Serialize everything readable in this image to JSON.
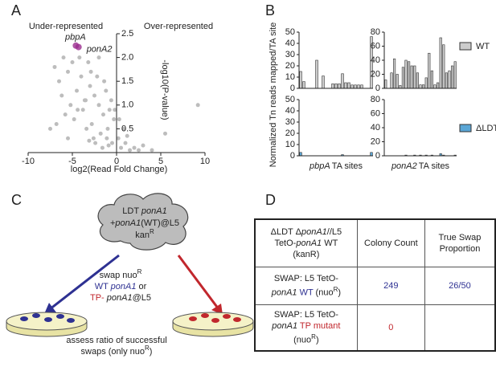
{
  "panels": [
    "A",
    "B",
    "C",
    "D"
  ],
  "chart_data": [
    {
      "type": "scatter",
      "left_label": "Under-represented",
      "right_label": "Over-represented",
      "xlabel": "log2(Read Fold Change)",
      "ylabel": "-log10(P-value)",
      "xlim": [
        -10,
        10
      ],
      "ylim": [
        0,
        2.5
      ],
      "xticks": [
        -10,
        -5,
        0,
        5,
        10
      ],
      "yticks": [
        0.5,
        {
          "value": 1,
          "label": "1.0"
        },
        1.5,
        {
          "value": 2,
          "label": "2.0"
        },
        2.5
      ],
      "color": "#bdbdbd",
      "x": [
        -0.5,
        -1,
        -1.5,
        -2,
        -2.5,
        -3,
        -3.5,
        -4,
        -4.5,
        -5,
        -5.5,
        -6,
        -6.5,
        -7,
        -1.2,
        -2.2,
        -3.2,
        -4.2,
        -5.2,
        -0.8,
        -1.8,
        -2.8,
        -3.8,
        -0.3,
        -0.6,
        -1.4,
        -2.6,
        -3.4,
        -4.8,
        -5.8,
        -6.2,
        0.2,
        0.5,
        1,
        1.5,
        2,
        2.5,
        3,
        4,
        0.8,
        1.2,
        0.3,
        -0.2,
        -0.9,
        -1.6,
        -2.4,
        -3.1,
        -5.5,
        -6.8,
        -4.4,
        9.2,
        5.5,
        -7.5,
        -1.1,
        -2.0,
        -3.6,
        -2.9
      ],
      "y": [
        0.2,
        0.5,
        0.8,
        1.0,
        1.2,
        1.4,
        1.1,
        1.6,
        1.3,
        1.9,
        1.7,
        2.0,
        1.5,
        1.8,
        1.3,
        1.6,
        1.9,
        2.0,
        1.0,
        0.9,
        0.4,
        0.6,
        0.9,
        0.7,
        1.1,
        1.5,
        0.3,
        0.5,
        0.7,
        0.8,
        1.2,
        0.3,
        0.1,
        0.2,
        0.05,
        0.1,
        0.05,
        0.15,
        0.05,
        0.5,
        0.35,
        0.7,
        0.9,
        0.15,
        0.1,
        0.2,
        0.25,
        0.3,
        0.6,
        0.9,
        1.0,
        0.4,
        0.5,
        0.3,
        2.0,
        1.1,
        1.7
      ],
      "highlight_color": "#9b2d8e",
      "highlights": [
        {
          "name": "pbpA",
          "x": -4.6,
          "y": 2.25
        },
        {
          "name": "ponA2",
          "x": -4.3,
          "y": 2.22
        }
      ]
    },
    {
      "type": "bar",
      "ylabel": "Normalized Tn reads mapped/TA site",
      "ylim": [
        0,
        50
      ],
      "yticks": [
        0,
        10,
        20,
        30,
        40,
        50
      ],
      "color": "#cccccc",
      "values": [
        15,
        6,
        0,
        0,
        0,
        25,
        0,
        11,
        0,
        0,
        4,
        4,
        4,
        13,
        5,
        5,
        3,
        3,
        3,
        3,
        0,
        0,
        46
      ]
    },
    {
      "type": "bar",
      "ylim": [
        0,
        80
      ],
      "yticks": [
        0,
        20,
        40,
        60,
        80
      ],
      "color": "#cccccc",
      "legend": "WT",
      "values": [
        12,
        0,
        22,
        42,
        20,
        4,
        30,
        40,
        38,
        32,
        32,
        22,
        5,
        5,
        15,
        50,
        25,
        5,
        8,
        72,
        62,
        22,
        25,
        32,
        38
      ]
    },
    {
      "type": "bar",
      "ylim": [
        0,
        50
      ],
      "yticks": [
        0,
        10,
        20,
        30,
        40,
        50
      ],
      "color": "#5aa6d6",
      "xgene": "pbpA",
      "xlabel": "TA sites",
      "values": [
        3,
        0,
        0,
        0,
        0,
        0,
        0,
        0,
        0,
        0,
        0,
        0,
        0,
        1,
        0,
        0,
        0,
        0,
        0,
        0,
        0,
        0,
        3
      ]
    },
    {
      "type": "bar",
      "ylim": [
        0,
        80
      ],
      "yticks": [
        0,
        20,
        40,
        60,
        80
      ],
      "color": "#5aa6d6",
      "legend": "ΔLDT",
      "xgene": "ponA2",
      "xlabel": "TA sites",
      "values": [
        0,
        0,
        0,
        0,
        0,
        0,
        0,
        1,
        0,
        0,
        1,
        0,
        1,
        0,
        1,
        0,
        1,
        0,
        0,
        3,
        1,
        0,
        0,
        0,
        1
      ]
    }
  ],
  "diagram": {
    "cloud": [
      [
        {
          "t": "LDT "
        },
        {
          "t": "ponA1",
          "i": 1
        }
      ],
      [
        {
          "t": "+"
        },
        {
          "t": "ponA1",
          "i": 1
        },
        {
          "t": "(WT)@L5"
        }
      ],
      [
        {
          "t": "kan"
        },
        {
          "t": "R",
          "sup": 1
        }
      ]
    ],
    "swap": [
      [
        {
          "t": "swap nuo"
        },
        {
          "t": "R",
          "sup": 1
        }
      ],
      [
        {
          "t": "WT ",
          "c": "#2e3192"
        },
        {
          "t": "ponA1",
          "i": 1,
          "c": "#2e3192"
        },
        {
          "t": " or"
        }
      ],
      [
        {
          "t": "TP- ",
          "c": "#c1272d"
        },
        {
          "t": "ponA1",
          "i": 1
        },
        {
          "t": "@L5"
        }
      ]
    ],
    "assess": [
      [
        {
          "t": "assess ratio of successful"
        }
      ],
      [
        {
          "t": "swaps (only nuo"
        },
        {
          "t": "R",
          "sup": 1
        },
        {
          "t": ")"
        }
      ]
    ]
  },
  "table": {
    "rows": [
      [
        [
          [
            {
              "t": "ΔLDT Δ"
            },
            {
              "t": "ponA1",
              "i": 1
            },
            {
              "t": "//L5"
            }
          ],
          [
            {
              "t": "TetO-"
            },
            {
              "t": "ponA1",
              "i": 1
            },
            {
              "t": " WT"
            }
          ],
          [
            {
              "t": "(kanR)"
            }
          ]
        ],
        [
          [
            {
              "t": "Colony Count"
            }
          ]
        ],
        [
          [
            {
              "t": "True Swap"
            }
          ],
          [
            {
              "t": "Proportion"
            }
          ]
        ]
      ],
      [
        [
          [
            {
              "t": "SWAP: L5 TetO-"
            }
          ],
          [
            {
              "t": "ponA1",
              "i": 1
            },
            {
              "t": " WT",
              "c": "#2e3192"
            },
            {
              "t": " (nuo"
            },
            {
              "t": "R",
              "sup": 1
            },
            {
              "t": ")"
            }
          ]
        ],
        [
          [
            {
              "t": "249",
              "c": "#2e3192"
            }
          ]
        ],
        [
          [
            {
              "t": "26/50",
              "c": "#2e3192"
            }
          ]
        ]
      ],
      [
        [
          [
            {
              "t": "SWAP: L5 TetO-"
            }
          ],
          [
            {
              "t": "ponA1",
              "i": 1
            },
            {
              "t": " TP mutant",
              "c": "#c1272d"
            }
          ],
          [
            {
              "t": "(nuo"
            },
            {
              "t": "R",
              "sup": 1
            },
            {
              "t": ")"
            }
          ]
        ],
        [
          [
            {
              "t": "0",
              "c": "#c1272d"
            }
          ]
        ],
        []
      ]
    ]
  }
}
